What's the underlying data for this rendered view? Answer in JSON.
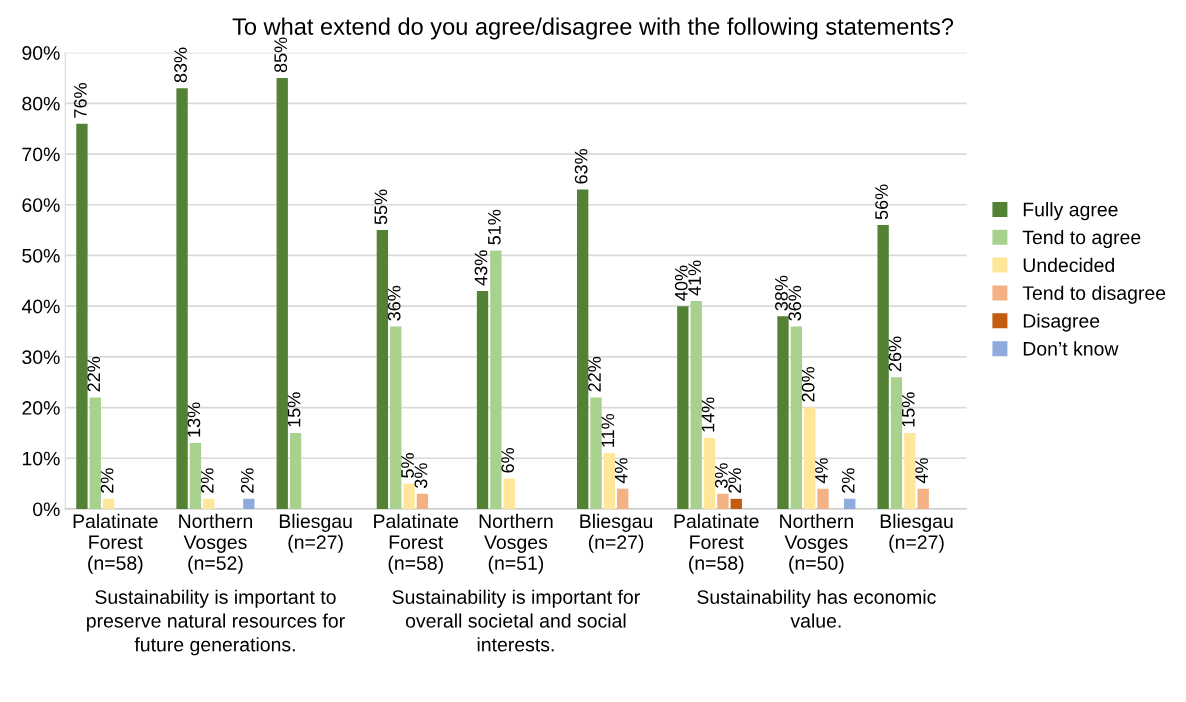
{
  "chart_data": {
    "type": "bar",
    "title": "To what extend do you agree/disagree with the following statements?",
    "categories": [
      "Palatinate\nForest\n(n=58)",
      "Northern\nVosges\n(n=52)",
      "Bliesgau\n(n=27)",
      "Palatinate\nForest\n(n=58)",
      "Northern\nVosges\n(n=51)",
      "Bliesgau\n(n=27)",
      "Palatinate\nForest\n(n=58)",
      "Northern\nVosges\n(n=50)",
      "Bliesgau\n(n=27)"
    ],
    "series": [
      {
        "name": "Fully agree",
        "color": "#548235",
        "values": [
          76,
          83,
          85,
          55,
          43,
          63,
          40,
          38,
          56
        ],
        "value_labels": [
          "76%",
          "83%",
          "85%",
          "55%",
          "43%",
          "63%",
          "40%",
          "38%",
          "56%"
        ]
      },
      {
        "name": "Tend to agree",
        "color": "#a9d18e",
        "values": [
          22,
          13,
          15,
          36,
          51,
          22,
          41,
          36,
          26
        ],
        "value_labels": [
          "22%",
          "13%",
          "15%",
          "36%",
          "51%",
          "22%",
          "41%",
          "36%",
          "26%"
        ]
      },
      {
        "name": "Undecided",
        "color": "#ffe699",
        "values": [
          2,
          2,
          null,
          5,
          6,
          11,
          14,
          20,
          15
        ],
        "value_labels": [
          "2%",
          "2%",
          null,
          "5%",
          "6%",
          "11%",
          "14%",
          "20%",
          "15%"
        ]
      },
      {
        "name": "Tend to disagree",
        "color": "#f4b183",
        "values": [
          null,
          null,
          null,
          3,
          null,
          4,
          3,
          4,
          4
        ],
        "value_labels": [
          null,
          null,
          null,
          "3%",
          null,
          "4%",
          "3%",
          "4%",
          "4%"
        ]
      },
      {
        "name": "Disagree",
        "color": "#c55a11",
        "values": [
          null,
          null,
          null,
          null,
          null,
          null,
          2,
          null,
          null
        ],
        "value_labels": [
          null,
          null,
          null,
          null,
          null,
          null,
          "2%",
          null,
          null
        ]
      },
      {
        "name": "Don’t know",
        "color": "#8faadc",
        "values": [
          null,
          2,
          null,
          null,
          null,
          null,
          null,
          2,
          null
        ],
        "value_labels": [
          null,
          "2%",
          null,
          null,
          null,
          null,
          null,
          "2%",
          null
        ]
      }
    ],
    "ylim": [
      0,
      90
    ],
    "yticks": [
      {
        "value": 0,
        "label": "0%"
      },
      {
        "value": 10,
        "label": "10%"
      },
      {
        "value": 20,
        "label": "20%"
      },
      {
        "value": 30,
        "label": "30%"
      },
      {
        "value": 40,
        "label": "40%"
      },
      {
        "value": 50,
        "label": "50%"
      },
      {
        "value": 60,
        "label": "60%"
      },
      {
        "value": 70,
        "label": "70%"
      },
      {
        "value": 80,
        "label": "80%"
      },
      {
        "value": 90,
        "label": "90%"
      }
    ],
    "grid": "y",
    "legend": "right",
    "annotations": [
      "Sustainability is important to\npreserve natural resources for\nfuture generations.",
      "Sustainability is important for\noverall societal and social\ninterests.",
      "Sustainability has economic\nvalue."
    ]
  }
}
